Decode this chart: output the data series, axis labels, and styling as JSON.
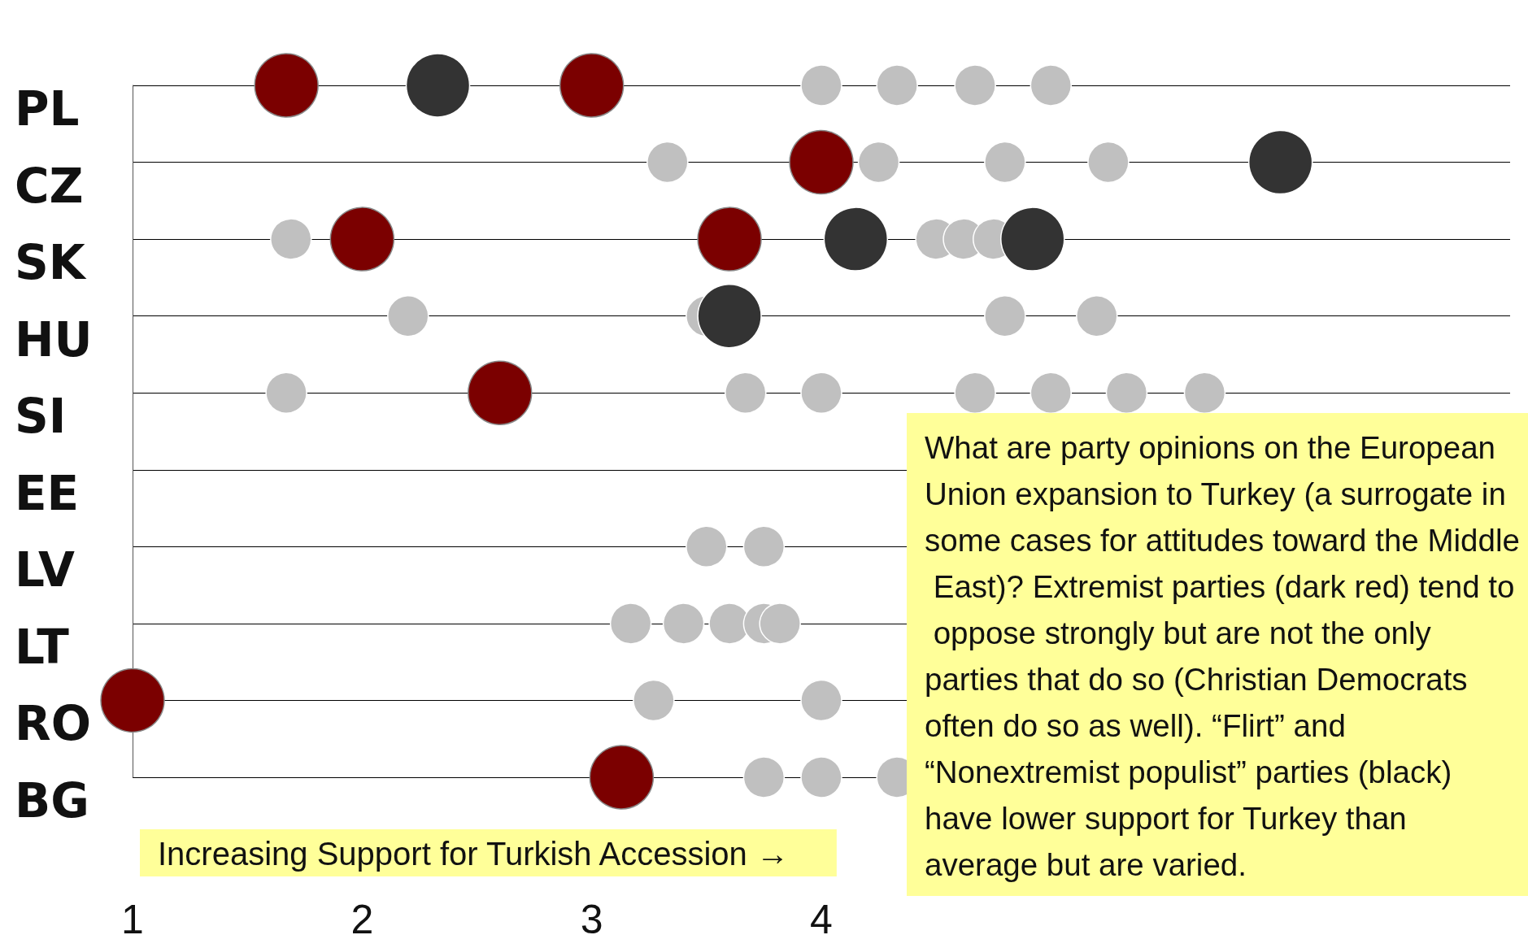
{
  "chart_data": {
    "type": "scatter",
    "orientation": "horizontal",
    "categories": [
      "PL",
      "CZ",
      "SK",
      "HU",
      "SI",
      "EE",
      "LV",
      "LT",
      "RO",
      "BG"
    ],
    "xlabel": "Increasing Support for Turkish Accession →",
    "xlim": [
      1,
      7
    ],
    "xticks": [
      1,
      2,
      3,
      4
    ],
    "grid": "y",
    "marker": "circle",
    "series": [
      {
        "color": "#c0c0c0",
        "x": [
          "PL",
          "PL",
          "PL",
          "PL",
          "CZ",
          "CZ",
          "CZ",
          "CZ",
          "SK",
          "SK",
          "SK",
          "SK",
          "HU",
          "HU",
          "HU",
          "HU",
          "SI",
          "SI",
          "SI",
          "SI",
          "SI",
          "SI",
          "SI",
          "LV",
          "LV",
          "LT",
          "LT",
          "LT",
          "LT",
          "LT",
          "RO",
          "RO",
          "BG",
          "BG",
          "BG"
        ],
        "values": [
          4.0,
          4.33,
          4.67,
          5.0,
          3.33,
          4.25,
          4.8,
          5.25,
          1.69,
          4.5,
          4.62,
          4.75,
          2.2,
          3.5,
          4.8,
          5.2,
          1.67,
          3.67,
          4.0,
          4.67,
          5.0,
          5.33,
          5.67,
          3.5,
          3.75,
          3.17,
          3.4,
          3.6,
          3.75,
          3.82,
          3.27,
          4.0,
          3.75,
          4.0,
          4.33
        ]
      },
      {
        "color": "#7b0000",
        "x": [
          "PL",
          "PL",
          "CZ",
          "SK",
          "SK",
          "SI",
          "RO",
          "BG"
        ],
        "values": [
          1.67,
          3.0,
          4.0,
          2.0,
          3.6,
          2.6,
          1.0,
          3.13
        ]
      },
      {
        "color": "#333333",
        "x": [
          "PL",
          "CZ",
          "SK",
          "SK",
          "HU"
        ],
        "values": [
          2.33,
          6.0,
          4.15,
          4.92,
          3.6
        ]
      }
    ],
    "annotations": [
      "What are party opinions on the European Union expansion to Turkey (a surrogate in some cases for attitudes toward the Middle East)? Extremist parties (dark red) tend to oppose strongly but are not the only parties that do so (Christian Democrats often do so as well). “Flirt” and “Nonextremist populist” parties (black) have lower support for Turkey than average but are varied."
    ]
  }
}
